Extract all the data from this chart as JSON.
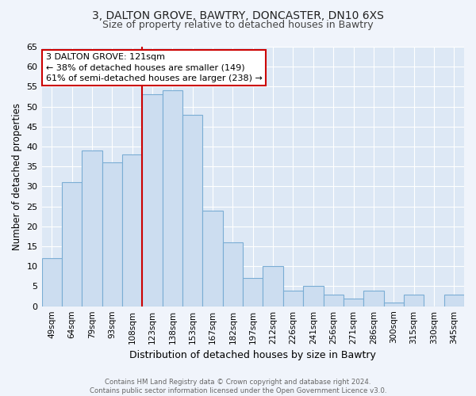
{
  "title1": "3, DALTON GROVE, BAWTRY, DONCASTER, DN10 6XS",
  "title2": "Size of property relative to detached houses in Bawtry",
  "xlabel": "Distribution of detached houses by size in Bawtry",
  "ylabel": "Number of detached properties",
  "bar_labels": [
    "49sqm",
    "64sqm",
    "79sqm",
    "93sqm",
    "108sqm",
    "123sqm",
    "138sqm",
    "153sqm",
    "167sqm",
    "182sqm",
    "197sqm",
    "212sqm",
    "226sqm",
    "241sqm",
    "256sqm",
    "271sqm",
    "286sqm",
    "300sqm",
    "315sqm",
    "330sqm",
    "345sqm"
  ],
  "bar_values": [
    12,
    31,
    39,
    36,
    38,
    53,
    54,
    48,
    24,
    16,
    7,
    10,
    4,
    5,
    3,
    2,
    4,
    1,
    3,
    0,
    3
  ],
  "bar_color": "#ccddf0",
  "bar_edge_color": "#7aadd4",
  "ylim": [
    0,
    65
  ],
  "yticks": [
    0,
    5,
    10,
    15,
    20,
    25,
    30,
    35,
    40,
    45,
    50,
    55,
    60,
    65
  ],
  "annotation_line1": "3 DALTON GROVE: 121sqm",
  "annotation_line2": "← 38% of detached houses are smaller (149)",
  "annotation_line3": "61% of semi-detached houses are larger (238) →",
  "annotation_box_color": "#ffffff",
  "annotation_box_edge_color": "#cc0000",
  "vline_color": "#cc0000",
  "vline_x_index": 5,
  "footnote": "Contains HM Land Registry data © Crown copyright and database right 2024.\nContains public sector information licensed under the Open Government Licence v3.0.",
  "background_color": "#f0f4fb",
  "plot_bg_color": "#dde8f5",
  "grid_color": "#ffffff",
  "title1_fontsize": 10,
  "title2_fontsize": 9
}
